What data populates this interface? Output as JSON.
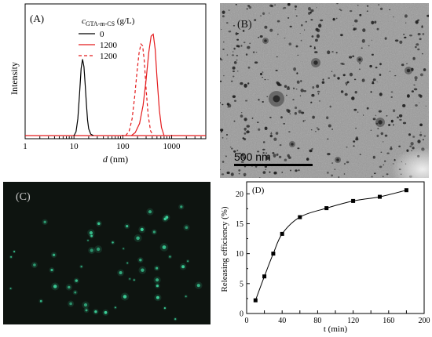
{
  "chart_data": [
    {
      "panel": "(A)",
      "type": "line",
      "xscale": "log",
      "xlim": [
        1,
        5000
      ],
      "xticks": [
        "1",
        "10",
        "100",
        "1000"
      ],
      "xlabel_italic": "d",
      "xlabel_unit": " (nm)",
      "ylabel": "Intensity",
      "legend_title_main": "c",
      "legend_title_sub": "GTA-m-CS",
      "legend_title_unit": " (g/L)",
      "legend_placement": "top-center",
      "series": [
        {
          "name": "0",
          "color": "#000000",
          "style": "solid",
          "x": [
            10,
            11,
            12,
            13,
            14,
            15,
            16,
            17,
            18,
            19,
            20,
            22,
            25
          ],
          "y": [
            0,
            0.05,
            0.22,
            0.55,
            0.88,
            1.0,
            0.9,
            0.66,
            0.4,
            0.2,
            0.09,
            0.02,
            0
          ]
        },
        {
          "name": "1200",
          "color": "#e41a1c",
          "style": "solid",
          "x": [
            150,
            180,
            220,
            260,
            300,
            340,
            380,
            420,
            460,
            500,
            560,
            620,
            700
          ],
          "y": [
            0,
            0.03,
            0.12,
            0.3,
            0.55,
            0.82,
            0.98,
            1.0,
            0.85,
            0.58,
            0.25,
            0.08,
            0
          ]
        },
        {
          "name": "1200",
          "color": "#e41a1c",
          "style": "dashed",
          "x": [
            115,
            135,
            155,
            175,
            195,
            215,
            235,
            255,
            275,
            300,
            330,
            370,
            420
          ],
          "y": [
            0,
            0.05,
            0.18,
            0.42,
            0.68,
            0.88,
            0.98,
            0.96,
            0.8,
            0.5,
            0.22,
            0.05,
            0
          ]
        }
      ],
      "peak_heights": [
        0.58,
        0.77,
        0.71
      ]
    },
    {
      "panel": "(D)",
      "type": "scatter",
      "xlabel": "t (min)",
      "ylabel": "Releasing efficiency (%)",
      "xlim": [
        0,
        200
      ],
      "ylim": [
        0,
        22
      ],
      "xticks": [
        0,
        20,
        40,
        60,
        80,
        100,
        120,
        140,
        160,
        180,
        200
      ],
      "yticks": [
        0,
        5,
        10,
        15,
        20
      ],
      "marker": "square",
      "fit_line": true,
      "series": [
        {
          "name": "",
          "x": [
            10,
            20,
            30,
            40,
            60,
            90,
            120,
            150,
            180
          ],
          "y": [
            2.2,
            6.2,
            10.0,
            13.3,
            16.1,
            17.6,
            18.8,
            19.5,
            20.6
          ]
        }
      ]
    }
  ],
  "images": [
    {
      "panel": "(B)",
      "kind": "TEM micrograph",
      "background": "#9a9a9a",
      "scale_bar_label": "500 nm"
    },
    {
      "panel": "(C)",
      "kind": "fluorescence micrograph",
      "background": "#0e1410",
      "spot_color": "#3bd19a"
    }
  ]
}
